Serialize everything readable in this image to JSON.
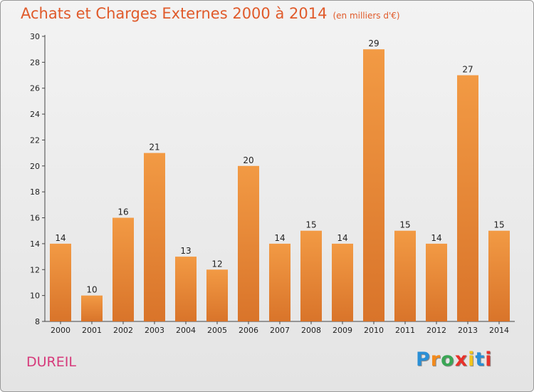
{
  "chart_data": {
    "type": "bar",
    "title": "Achats et Charges Externes 2000 à 2014",
    "subtitle": "(en milliers d'€)",
    "categories": [
      "2000",
      "2001",
      "2002",
      "2003",
      "2004",
      "2005",
      "2006",
      "2007",
      "2008",
      "2009",
      "2010",
      "2011",
      "2012",
      "2013",
      "2014"
    ],
    "values": [
      14,
      10,
      16,
      21,
      13,
      12,
      20,
      14,
      15,
      14,
      29,
      15,
      14,
      27,
      15
    ],
    "xlabel": "",
    "ylabel": "",
    "ylim": [
      8,
      30
    ],
    "yticks": [
      8,
      10,
      12,
      14,
      16,
      18,
      20,
      22,
      24,
      26,
      28,
      30
    ],
    "grid": false,
    "legend": "none",
    "bar_color": "#f29a44",
    "bar_color_dark": "#d9742a"
  },
  "footer": {
    "town": "DUREIL",
    "logo_letters": [
      "P",
      "r",
      "o",
      "x",
      "i",
      "t",
      "i"
    ],
    "logo_colors": [
      "#2a8fd6",
      "#f28a1c",
      "#3aa655",
      "#e8312a",
      "#f2c41c",
      "#2a8fd6",
      "#e8312a"
    ]
  }
}
